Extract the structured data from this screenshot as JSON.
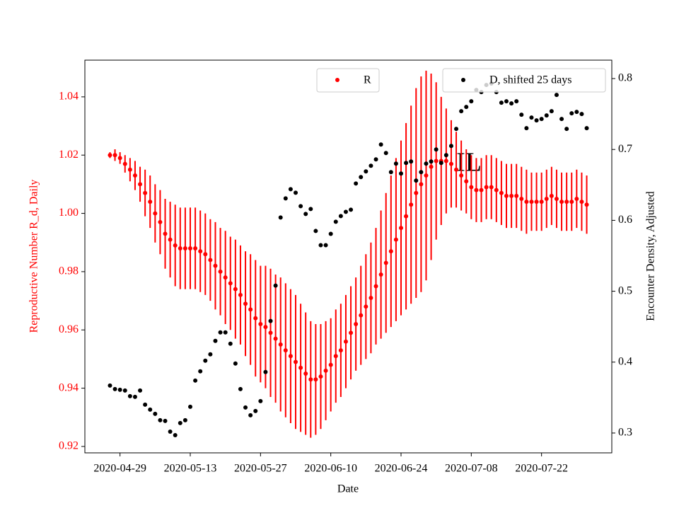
{
  "chart_data": {
    "type": "scatter",
    "title_annotation": "IL",
    "xlabel": "Date",
    "ylabel": "Reproductive Number R_d, Daily",
    "ylabel_color": "#ff0000",
    "y2label": "Encounter Density, Adjusted",
    "x": [
      "2020-04-27",
      "2020-04-28",
      "2020-04-29",
      "2020-04-30",
      "2020-05-01",
      "2020-05-02",
      "2020-05-03",
      "2020-05-04",
      "2020-05-05",
      "2020-05-06",
      "2020-05-07",
      "2020-05-08",
      "2020-05-09",
      "2020-05-10",
      "2020-05-11",
      "2020-05-12",
      "2020-05-13",
      "2020-05-14",
      "2020-05-15",
      "2020-05-16",
      "2020-05-17",
      "2020-05-18",
      "2020-05-19",
      "2020-05-20",
      "2020-05-21",
      "2020-05-22",
      "2020-05-23",
      "2020-05-24",
      "2020-05-25",
      "2020-05-26",
      "2020-05-27",
      "2020-05-28",
      "2020-05-29",
      "2020-05-30",
      "2020-05-31",
      "2020-06-01",
      "2020-06-02",
      "2020-06-03",
      "2020-06-04",
      "2020-06-05",
      "2020-06-06",
      "2020-06-07",
      "2020-06-08",
      "2020-06-09",
      "2020-06-10",
      "2020-06-11",
      "2020-06-12",
      "2020-06-13",
      "2020-06-14",
      "2020-06-15",
      "2020-06-16",
      "2020-06-17",
      "2020-06-18",
      "2020-06-19",
      "2020-06-20",
      "2020-06-21",
      "2020-06-22",
      "2020-06-23",
      "2020-06-24",
      "2020-06-25",
      "2020-06-26",
      "2020-06-27",
      "2020-06-28",
      "2020-06-29",
      "2020-06-30",
      "2020-07-01",
      "2020-07-02",
      "2020-07-03",
      "2020-07-04",
      "2020-07-05",
      "2020-07-06",
      "2020-07-07",
      "2020-07-08",
      "2020-07-09",
      "2020-07-10",
      "2020-07-11",
      "2020-07-12",
      "2020-07-13",
      "2020-07-14",
      "2020-07-15",
      "2020-07-16",
      "2020-07-17",
      "2020-07-18",
      "2020-07-19",
      "2020-07-20",
      "2020-07-21",
      "2020-07-22",
      "2020-07-23",
      "2020-07-24",
      "2020-07-25",
      "2020-07-26",
      "2020-07-27",
      "2020-07-28",
      "2020-07-29",
      "2020-07-30",
      "2020-07-31"
    ],
    "series": [
      {
        "name": "R",
        "color": "#ff0000",
        "legend": "upper center",
        "values": [
          1.02,
          1.02,
          1.019,
          1.017,
          1.015,
          1.013,
          1.01,
          1.007,
          1.004,
          1.0,
          0.997,
          0.993,
          0.991,
          0.989,
          0.988,
          0.988,
          0.988,
          0.988,
          0.987,
          0.986,
          0.984,
          0.982,
          0.98,
          0.978,
          0.976,
          0.974,
          0.972,
          0.969,
          0.967,
          0.964,
          0.962,
          0.961,
          0.959,
          0.957,
          0.955,
          0.953,
          0.951,
          0.949,
          0.947,
          0.945,
          0.943,
          0.943,
          0.944,
          0.946,
          0.948,
          0.951,
          0.953,
          0.956,
          0.959,
          0.962,
          0.965,
          0.968,
          0.971,
          0.975,
          0.979,
          0.983,
          0.987,
          0.991,
          0.995,
          0.999,
          1.003,
          1.007,
          1.01,
          1.013,
          1.016,
          1.018,
          1.018,
          1.018,
          1.017,
          1.015,
          1.013,
          1.011,
          1.009,
          1.008,
          1.008,
          1.009,
          1.009,
          1.008,
          1.007,
          1.006,
          1.006,
          1.006,
          1.005,
          1.004,
          1.004,
          1.004,
          1.004,
          1.005,
          1.006,
          1.005,
          1.004,
          1.004,
          1.004,
          1.005,
          1.004,
          1.003
        ],
        "errors": [
          0.001,
          0.002,
          0.002,
          0.003,
          0.004,
          0.005,
          0.006,
          0.008,
          0.009,
          0.01,
          0.011,
          0.012,
          0.013,
          0.014,
          0.014,
          0.014,
          0.014,
          0.014,
          0.014,
          0.014,
          0.014,
          0.015,
          0.015,
          0.016,
          0.016,
          0.017,
          0.017,
          0.018,
          0.019,
          0.02,
          0.02,
          0.021,
          0.022,
          0.022,
          0.023,
          0.023,
          0.023,
          0.023,
          0.022,
          0.021,
          0.02,
          0.019,
          0.018,
          0.017,
          0.016,
          0.016,
          0.016,
          0.016,
          0.016,
          0.016,
          0.017,
          0.018,
          0.019,
          0.02,
          0.022,
          0.024,
          0.026,
          0.028,
          0.03,
          0.032,
          0.034,
          0.036,
          0.037,
          0.036,
          0.032,
          0.027,
          0.022,
          0.018,
          0.015,
          0.013,
          0.012,
          0.011,
          0.011,
          0.011,
          0.011,
          0.011,
          0.011,
          0.011,
          0.011,
          0.011,
          0.011,
          0.011,
          0.011,
          0.011,
          0.01,
          0.01,
          0.01,
          0.01,
          0.01,
          0.01,
          0.01,
          0.01,
          0.01,
          0.01,
          0.01,
          0.01
        ]
      },
      {
        "name": "D, shifted 25 days",
        "color": "#000000",
        "axis": "y2",
        "legend": "upper right",
        "values": [
          0.367,
          0.362,
          0.361,
          0.36,
          0.352,
          0.351,
          0.36,
          0.34,
          0.333,
          0.327,
          0.318,
          0.317,
          0.302,
          0.297,
          0.314,
          0.318,
          0.337,
          0.374,
          0.387,
          0.402,
          0.411,
          0.43,
          0.442,
          0.442,
          0.426,
          0.398,
          0.362,
          0.336,
          0.325,
          0.331,
          0.345,
          0.386,
          0.458,
          0.508,
          0.604,
          0.631,
          0.644,
          0.639,
          0.62,
          0.609,
          0.616,
          0.585,
          0.565,
          0.565,
          0.581,
          0.598,
          0.606,
          0.612,
          0.615,
          0.652,
          0.661,
          0.669,
          0.677,
          0.686,
          0.707,
          0.695,
          0.668,
          0.68,
          0.666,
          0.681,
          0.683,
          0.656,
          0.668,
          0.68,
          0.683,
          0.7,
          0.681,
          0.692,
          0.705,
          0.729,
          0.754,
          0.76,
          0.768,
          0.784,
          0.781,
          0.791,
          0.793,
          0.781,
          0.766,
          0.768,
          0.765,
          0.768,
          0.749,
          0.73,
          0.745,
          0.741,
          0.743,
          0.748,
          0.754,
          0.777,
          0.743,
          0.729,
          0.751,
          0.753,
          0.75,
          0.73
        ]
      }
    ],
    "xlim": [
      "2020-04-22",
      "2020-08-05"
    ],
    "xticks": [
      "2020-04-29",
      "2020-05-13",
      "2020-05-27",
      "2020-06-10",
      "2020-06-24",
      "2020-07-08",
      "2020-07-22"
    ],
    "ylim": [
      0.9178,
      1.0526
    ],
    "yticks": [
      0.92,
      0.94,
      0.96,
      0.98,
      {
        "value": 1,
        "label": "1.00"
      },
      1.02,
      1.04
    ],
    "y2lim": [
      0.272,
      0.826
    ],
    "y2ticks": [
      0.3,
      0.4,
      0.5,
      0.6,
      0.7,
      0.8
    ],
    "grid": false
  }
}
